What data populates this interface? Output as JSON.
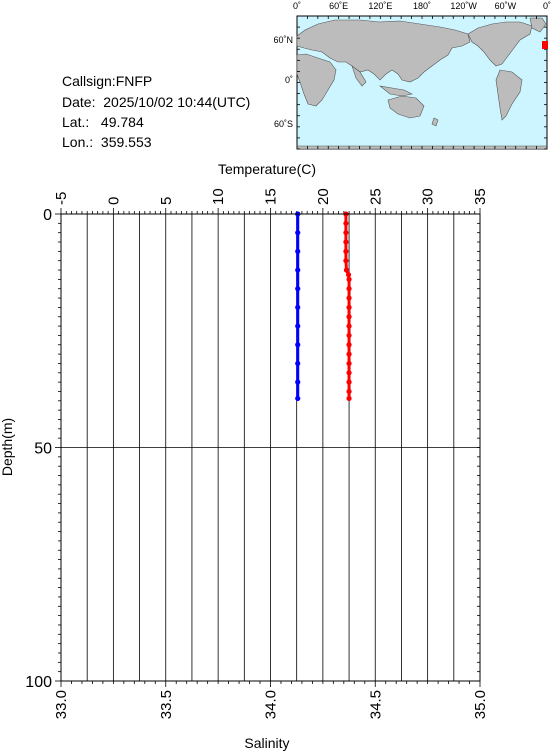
{
  "header": {
    "callsign_label": "Callsign:",
    "callsign": "FNFP",
    "date_label": "Date:",
    "date": "2025/10/02 10:44(UTC)",
    "lat_label": "Lat.:",
    "lat": "49.784",
    "lon_label": "Lon.:",
    "lon": "359.553"
  },
  "map": {
    "top_ticks": [
      "0˚",
      "60˚E",
      "120˚E",
      "180˚",
      "120˚W",
      "60˚W",
      "0˚"
    ],
    "left_ticks": [
      "60˚N",
      "0˚",
      "60˚S"
    ],
    "ocean_color": "#ccf5ff",
    "land_color": "#bcbcbc",
    "marker_color": "#ff0000"
  },
  "chart_data": {
    "type": "line",
    "title": "",
    "top_axis": {
      "label": "Temperature(C)",
      "range": [
        -5,
        35
      ],
      "ticks": [
        "-5",
        "0",
        "5",
        "10",
        "15",
        "20",
        "25",
        "30",
        "35"
      ]
    },
    "bottom_axis": {
      "label": "Salinity",
      "range": [
        33.0,
        35.0
      ],
      "ticks": [
        "33.0",
        "33.5",
        "34.0",
        "34.5",
        "35.0"
      ]
    },
    "left_axis": {
      "label": "Depth(m)",
      "range": [
        0,
        100
      ],
      "inverted": true,
      "ticks": [
        "0",
        "50",
        "100"
      ]
    },
    "grid": true,
    "series": [
      {
        "color": "#ff0000",
        "axis": "temperature",
        "depth": [
          0,
          2,
          4,
          6,
          8,
          10,
          12,
          13,
          14,
          16,
          18,
          20,
          22,
          24,
          26,
          28,
          30,
          32,
          34,
          36,
          38,
          39.5
        ],
        "values": [
          22.2,
          22.2,
          22.2,
          22.2,
          22.2,
          22.2,
          22.25,
          22.45,
          22.5,
          22.5,
          22.5,
          22.5,
          22.5,
          22.5,
          22.5,
          22.5,
          22.5,
          22.5,
          22.5,
          22.5,
          22.5,
          22.5
        ]
      },
      {
        "color": "#0000ff",
        "axis": "salinity",
        "depth": [
          0,
          4,
          8,
          12,
          16,
          20,
          24,
          28,
          32,
          36,
          39.5
        ],
        "values": [
          34.13,
          34.13,
          34.13,
          34.13,
          34.13,
          34.13,
          34.13,
          34.13,
          34.13,
          34.13,
          34.13
        ]
      }
    ]
  }
}
